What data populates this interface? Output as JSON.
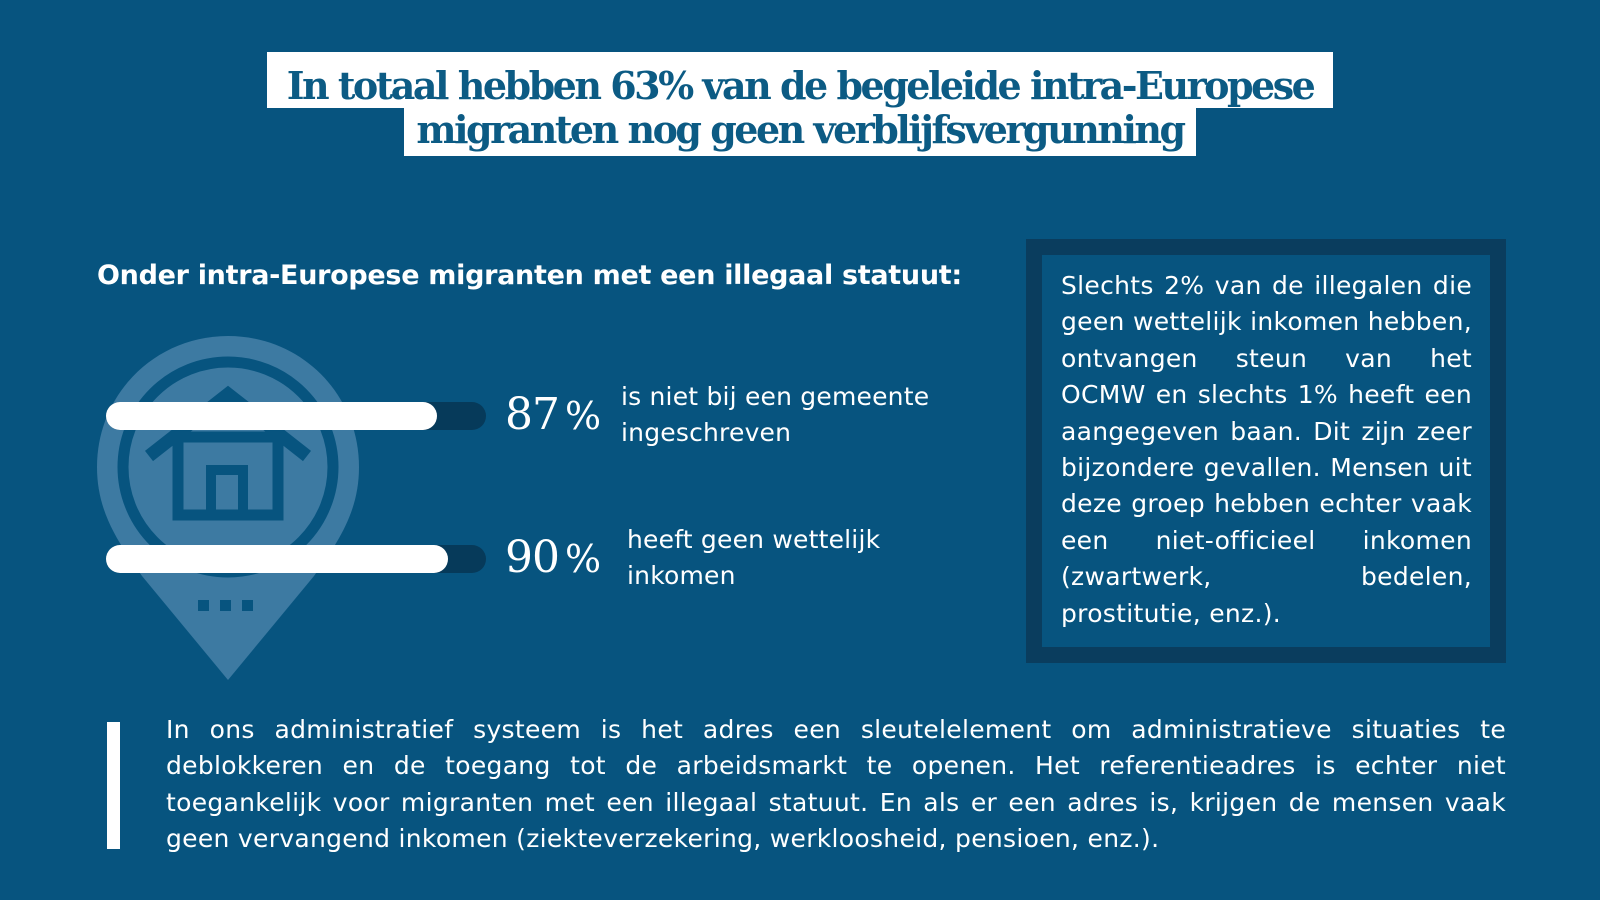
{
  "title": {
    "line1": "In totaal hebben 63% van de begeleide intra-Europese",
    "line2": "migranten nog geen verblijfsvergunning"
  },
  "subheading": "Onder intra-Europese migranten met een illegaal statuut:",
  "icons": {
    "background": "house-location-pin-icon"
  },
  "stats": [
    {
      "value": "87",
      "unit": "%",
      "fraction": 0.87,
      "line1": "is niet bij een gemeente",
      "line2": "ingeschreven"
    },
    {
      "value": "90",
      "unit": "%",
      "fraction": 0.9,
      "line1": "heeft geen wettelijk",
      "line2": "inkomen"
    }
  ],
  "note": "Slechts 2% van de illegalen die geen wettelijk inkomen hebben, ontvangen steun van het OCMW en slechts 1% heeft een aangegeven baan. Dit zijn zeer bijzondere gevallen. Mensen uit deze groep hebben echter vaak een niet-officieel inkomen (zwartwerk, bedelen, prostitutie, enz.).",
  "quote": "In ons administratief systeem is het adres een sleutelelement om administratieve situaties te deblokkeren en de toegang tot de arbeidsmarkt te openen. Het referentieadres is echter niet toegankelijk voor migranten met een illegaal statuut. En als er een adres is, krijgen de mensen vaak geen vervangend inkomen (ziekteverzekering, werkloosheid, pensioen, enz.).",
  "colors": {
    "background": "#07547f",
    "note_border": "#0a3d5e",
    "bar_track": "#063a5a",
    "bar_fill": "#ffffff",
    "title_text": "#0c5b84"
  }
}
